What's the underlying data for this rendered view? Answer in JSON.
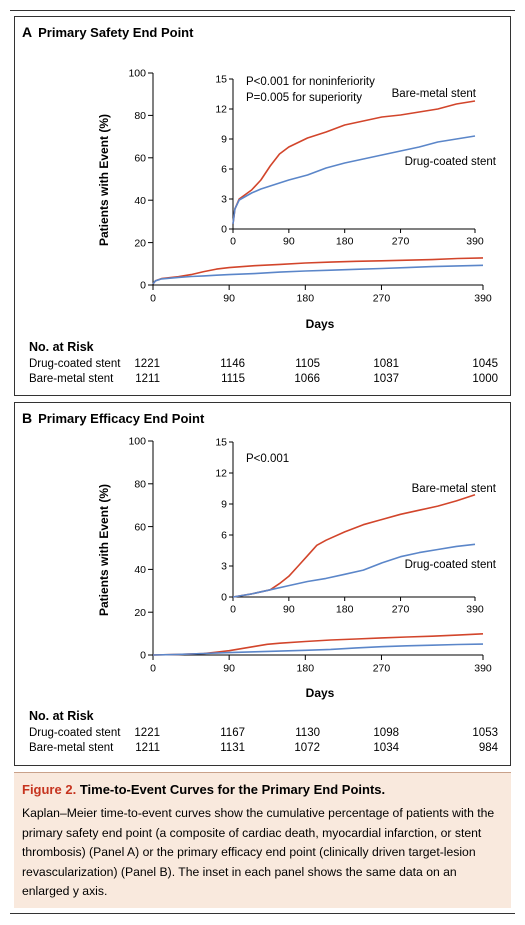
{
  "panels": {
    "a": {
      "letter": "A",
      "title": "Primary Safety End Point"
    },
    "b": {
      "letter": "B",
      "title": "Primary Efficacy End Point"
    }
  },
  "risk_table": {
    "title": "No. at Risk",
    "a": {
      "rows": [
        {
          "label": "Drug-coated stent",
          "values": [
            "1221",
            "1146",
            "1105",
            "1081",
            "1045"
          ]
        },
        {
          "label": "Bare-metal stent",
          "values": [
            "1211",
            "1115",
            "1066",
            "1037",
            "1000"
          ]
        }
      ]
    },
    "b": {
      "rows": [
        {
          "label": "Drug-coated stent",
          "values": [
            "1221",
            "1167",
            "1130",
            "1098",
            "1053"
          ]
        },
        {
          "label": "Bare-metal stent",
          "values": [
            "1211",
            "1131",
            "1072",
            "1034",
            "984"
          ]
        }
      ]
    }
  },
  "caption": {
    "figure_label": "Figure 2.",
    "title": "Time-to-Event Curves for the Primary End Points.",
    "text": "Kaplan–Meier time-to-event curves show the cumulative percentage of patients with the primary safety end point (a composite of cardiac death, myocardial infarction, or stent thrombosis) (Panel A) or the primary efficacy end point (clinically driven target-lesion revascularization) (Panel B). The inset in each panel shows the same data on an enlarged y axis."
  },
  "colors": {
    "bare_metal": "#d2452b",
    "drug_coated": "#5b86c9",
    "axis": "#000000"
  },
  "chart_data": [
    {
      "type": "line",
      "panel": "A",
      "title": "Primary Safety End Point",
      "xlabel": "Days",
      "ylabel": "Patients with Event (%)",
      "xlim": [
        0,
        390
      ],
      "ylim": [
        0,
        100
      ],
      "xticks": [
        0,
        90,
        180,
        270,
        390
      ],
      "yticks": [
        0,
        20,
        40,
        60,
        80,
        100
      ],
      "grid": false,
      "series": [
        {
          "name": "Bare-metal stent",
          "x": [
            0,
            3,
            10,
            30,
            45,
            60,
            75,
            90,
            120,
            150,
            180,
            210,
            240,
            270,
            300,
            330,
            360,
            390
          ],
          "y": [
            0.5,
            2.0,
            3.0,
            3.9,
            4.9,
            6.3,
            7.5,
            8.2,
            9.1,
            9.7,
            10.4,
            10.8,
            11.2,
            11.4,
            11.7,
            12.0,
            12.5,
            12.8
          ]
        },
        {
          "name": "Drug-coated stent",
          "x": [
            0,
            3,
            10,
            30,
            45,
            60,
            75,
            90,
            120,
            150,
            180,
            210,
            240,
            270,
            300,
            330,
            360,
            390
          ],
          "y": [
            0.5,
            2.0,
            2.9,
            3.6,
            4.0,
            4.3,
            4.6,
            4.9,
            5.4,
            6.1,
            6.6,
            7.0,
            7.4,
            7.8,
            8.2,
            8.7,
            9.0,
            9.3
          ]
        }
      ],
      "inset": {
        "xlim": [
          0,
          390
        ],
        "ylim": [
          0,
          15
        ],
        "xticks": [
          0,
          90,
          180,
          270,
          390
        ],
        "yticks": [
          0,
          3,
          6,
          9,
          12,
          15
        ],
        "annotations": [
          "P<0.001 for noninferiority",
          "P=0.005 for superiority"
        ],
        "labels": [
          "Bare-metal stent",
          "Drug-coated stent"
        ]
      }
    },
    {
      "type": "line",
      "panel": "B",
      "title": "Primary Efficacy End Point",
      "xlabel": "Days",
      "ylabel": "Patients with Event (%)",
      "xlim": [
        0,
        390
      ],
      "ylim": [
        0,
        100
      ],
      "xticks": [
        0,
        90,
        180,
        270,
        390
      ],
      "yticks": [
        0,
        20,
        40,
        60,
        80,
        100
      ],
      "grid": false,
      "series": [
        {
          "name": "Bare-metal stent",
          "x": [
            0,
            30,
            60,
            75,
            90,
            105,
            120,
            135,
            150,
            180,
            210,
            240,
            270,
            300,
            330,
            360,
            390
          ],
          "y": [
            0,
            0.3,
            0.7,
            1.3,
            2.0,
            3.0,
            4.0,
            5.0,
            5.5,
            6.3,
            7.0,
            7.5,
            8.0,
            8.4,
            8.8,
            9.3,
            9.9
          ]
        },
        {
          "name": "Drug-coated stent",
          "x": [
            0,
            30,
            60,
            90,
            120,
            150,
            180,
            210,
            240,
            270,
            300,
            330,
            360,
            390
          ],
          "y": [
            0,
            0.3,
            0.7,
            1.1,
            1.5,
            1.8,
            2.2,
            2.6,
            3.3,
            3.9,
            4.3,
            4.6,
            4.9,
            5.1
          ]
        }
      ],
      "inset": {
        "xlim": [
          0,
          390
        ],
        "ylim": [
          0,
          15
        ],
        "xticks": [
          0,
          90,
          180,
          270,
          390
        ],
        "yticks": [
          0,
          3,
          6,
          9,
          12,
          15
        ],
        "annotations": [
          "P<0.001"
        ],
        "labels": [
          "Bare-metal stent",
          "Drug-coated stent"
        ]
      }
    }
  ]
}
